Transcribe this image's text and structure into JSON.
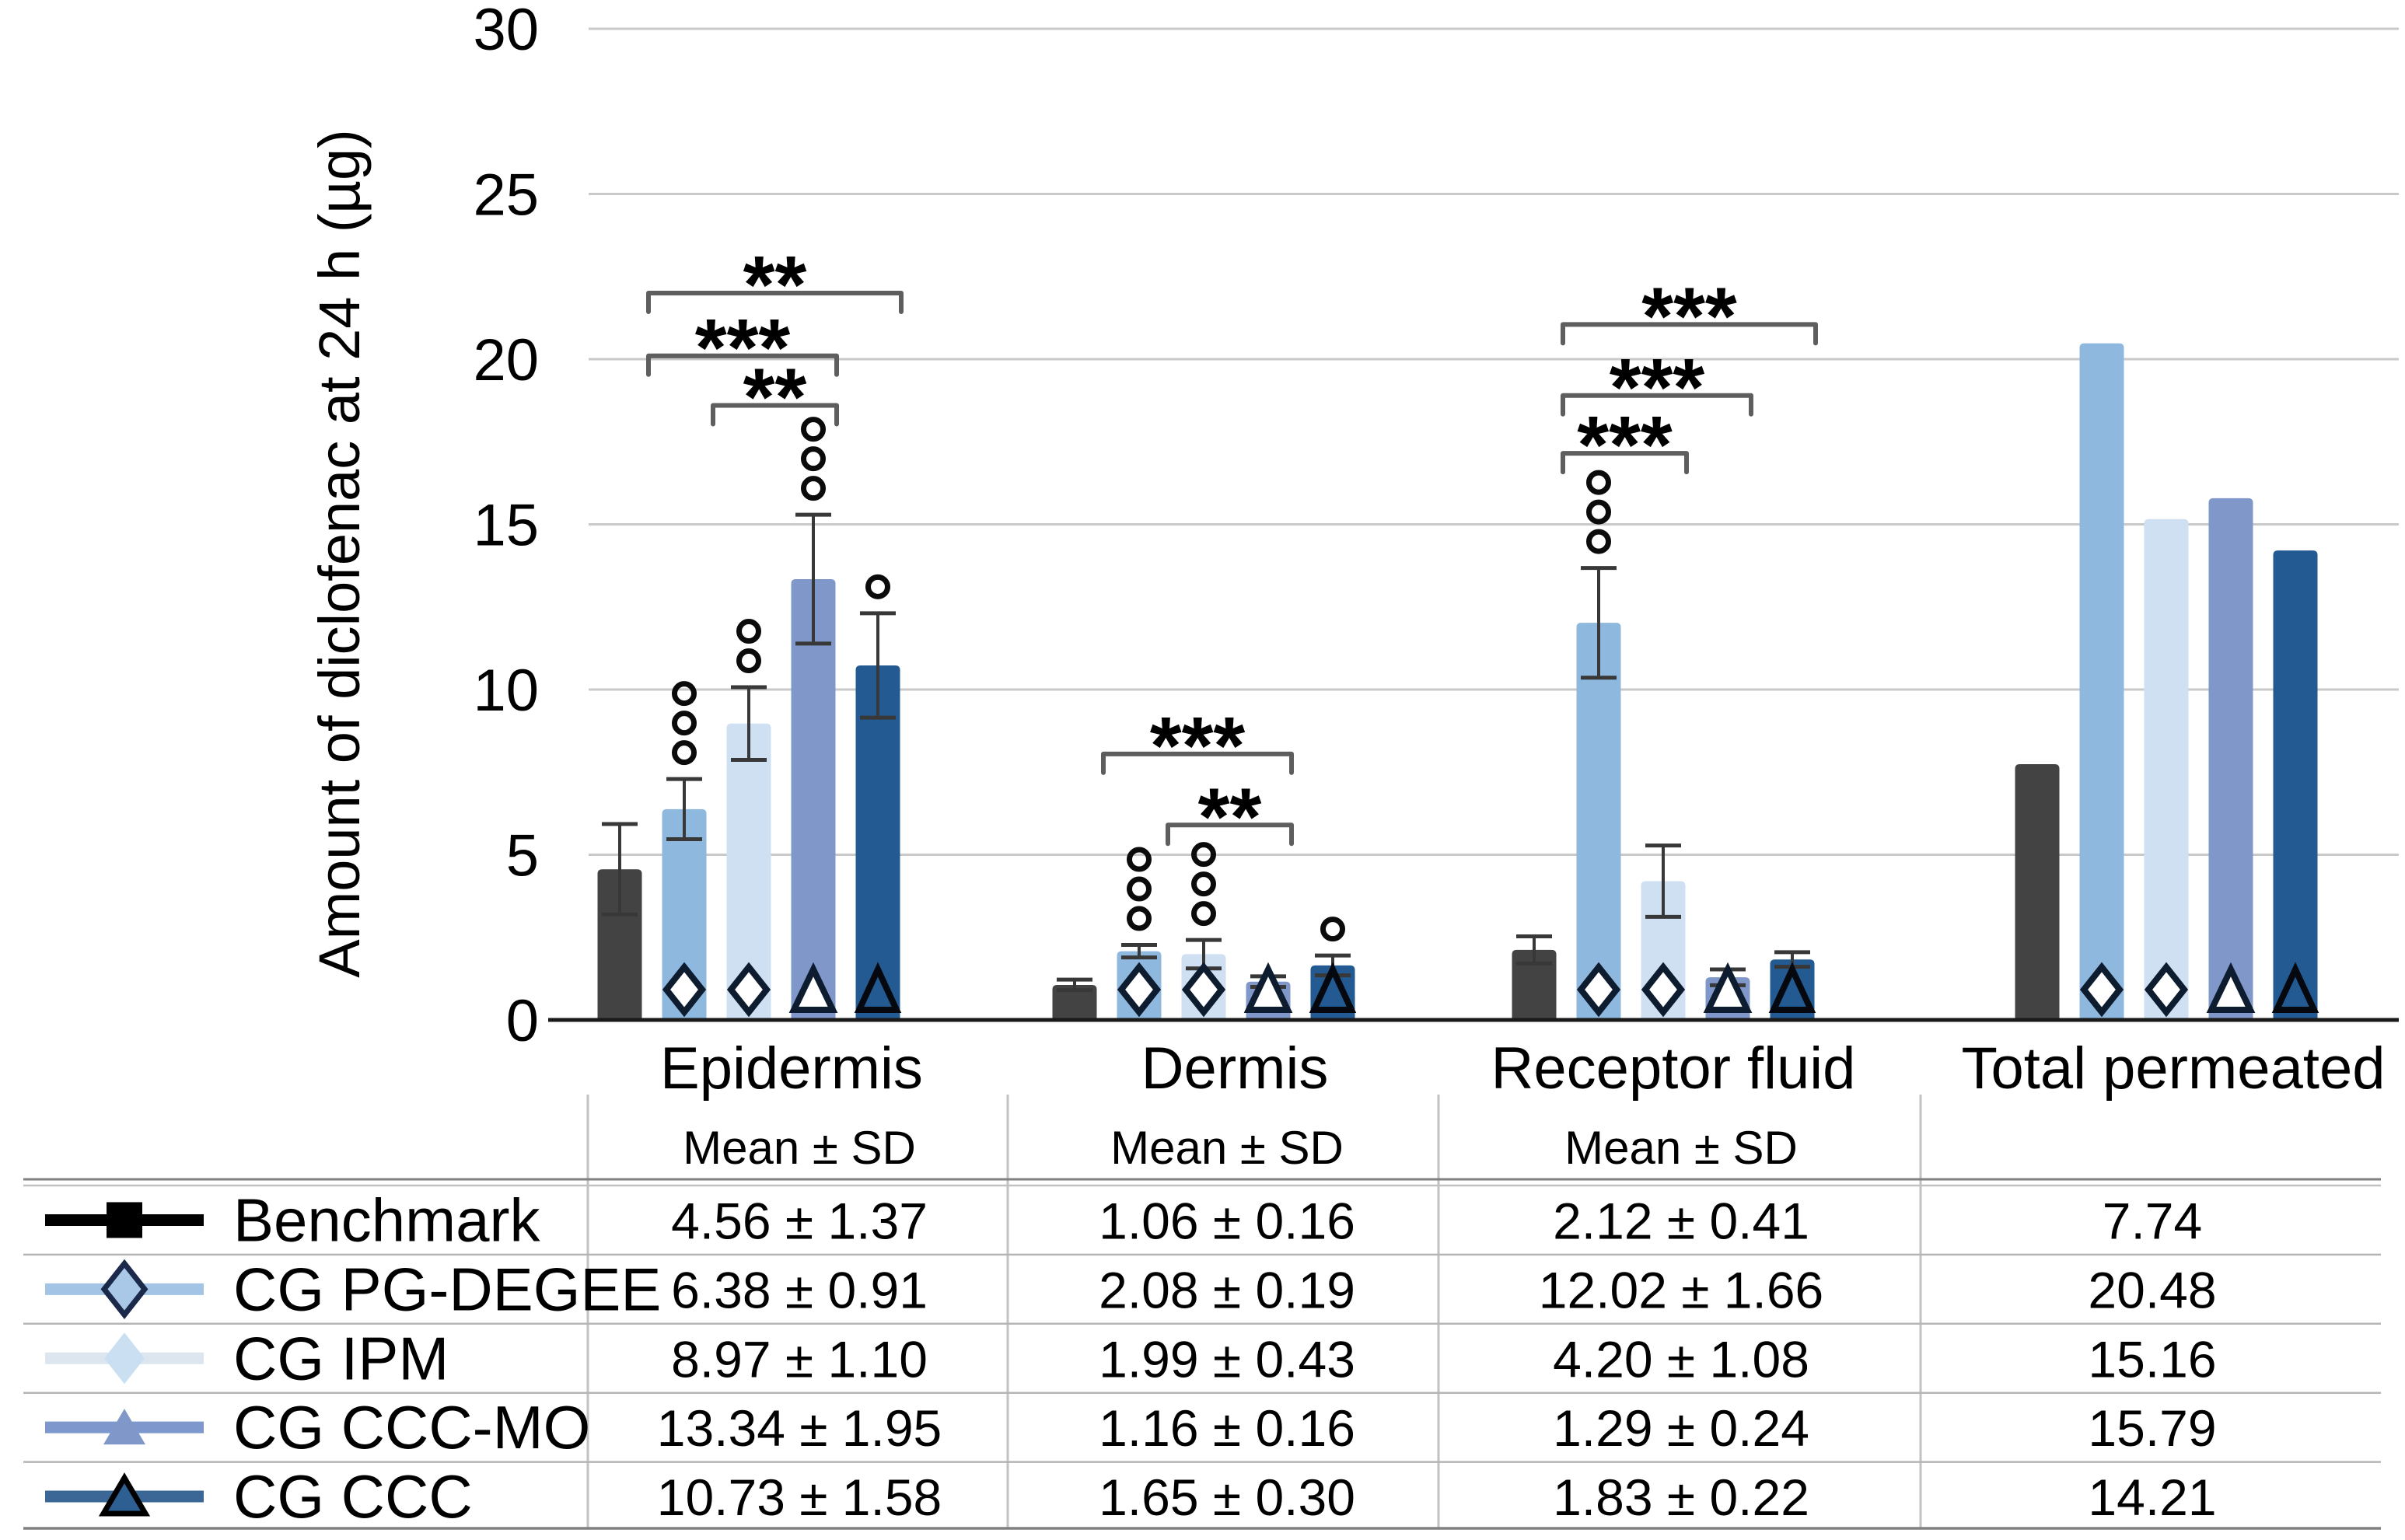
{
  "colors": {
    "background": "#ffffff",
    "benchmark": "#434343",
    "pg_degee": "#8fb8de",
    "ipm": "#cfe0f2",
    "ccc_mo": "#8097c9",
    "ccc": "#235a91",
    "gridline": "#c9c9c9",
    "axis_line": "#1a1a1a",
    "error_bar": "#383838",
    "significance": "#5e5e5e",
    "circle_marker": "#0b0b0b",
    "table_divider": "#c2c2c2",
    "table_row_line": "#b5b5b5",
    "table_header_line": "#808080"
  },
  "chart_data": {
    "type": "bar",
    "title": "",
    "ylabel": "Amount of diclofenac at 24 h (µg)",
    "ylim": [
      0,
      30
    ],
    "yticks": [
      0,
      5,
      10,
      15,
      20,
      25,
      30
    ],
    "grid": true,
    "legend_position": "table-left",
    "categories": [
      "Epidermis",
      "Dermis",
      "Receptor fluid",
      "Total permeated"
    ],
    "series": [
      {
        "name": "Benchmark",
        "values": [
          4.56,
          1.06,
          2.12,
          7.74
        ],
        "sd": [
          1.37,
          0.16,
          0.41,
          null
        ],
        "circles": [
          0,
          0,
          0,
          0
        ],
        "color": "#434343",
        "base_marker": "none",
        "legend": {
          "line": "#000000",
          "shape": "square",
          "fill": "#000000",
          "stroke": "none"
        }
      },
      {
        "name": "CG PG-DEGEE",
        "values": [
          6.38,
          2.08,
          12.02,
          20.48
        ],
        "sd": [
          0.91,
          0.19,
          1.66,
          null
        ],
        "circles": [
          3,
          3,
          3,
          0
        ],
        "color": "#8fb8de",
        "base_marker": "open-diamond",
        "legend": {
          "line": "#a3c4e5",
          "shape": "diamond",
          "fill": "#a9c8e8",
          "stroke": "#1b2a4a"
        }
      },
      {
        "name": "CG IPM",
        "values": [
          8.97,
          1.99,
          4.2,
          15.16
        ],
        "sd": [
          1.1,
          0.43,
          1.08,
          null
        ],
        "circles": [
          2,
          3,
          0,
          0
        ],
        "color": "#cfe0f2",
        "base_marker": "open-diamond",
        "legend": {
          "line": "#dde6ef",
          "shape": "diamond",
          "fill": "#cbdff2",
          "stroke": "none"
        }
      },
      {
        "name": "CG CCC-MO",
        "values": [
          13.34,
          1.16,
          1.29,
          15.79
        ],
        "sd": [
          1.95,
          0.16,
          0.24,
          null
        ],
        "circles": [
          3,
          0,
          0,
          0
        ],
        "color": "#8097c9",
        "base_marker": "open-triangle",
        "legend": {
          "line": "#7e97cc",
          "shape": "triangle",
          "fill": "#8097c9",
          "stroke": "none"
        }
      },
      {
        "name": "CG CCC",
        "values": [
          10.73,
          1.65,
          1.83,
          14.21
        ],
        "sd": [
          1.58,
          0.3,
          0.22,
          null
        ],
        "circles": [
          1,
          1,
          0,
          0
        ],
        "color": "#235a91",
        "base_marker": "outline-triangle",
        "legend": {
          "line": "#3a6795",
          "shape": "triangle",
          "fill": "#2e5f93",
          "stroke": "#000000"
        }
      }
    ],
    "significance": [
      {
        "category": 0,
        "from": 1,
        "to": 4,
        "label": "**",
        "y": 22.0
      },
      {
        "category": 0,
        "from": 1,
        "to": 3,
        "label": "***",
        "y": 20.1
      },
      {
        "category": 0,
        "from": 2,
        "to": 3,
        "label": "**",
        "y": 18.6
      },
      {
        "category": 1,
        "from": 1,
        "to": 3,
        "label": "***",
        "y": 8.05
      },
      {
        "category": 1,
        "from": 2,
        "to": 3,
        "label": "**",
        "y": 5.9
      },
      {
        "category": 2,
        "from": 1,
        "to": 4,
        "label": "***",
        "y": 21.05
      },
      {
        "category": 2,
        "from": 1,
        "to": 3,
        "label": "***",
        "y": 18.9
      },
      {
        "category": 2,
        "from": 1,
        "to": 2,
        "label": "***",
        "y": 17.15
      }
    ]
  },
  "table": {
    "columns": [
      "Epidermis",
      "Dermis",
      "Receptor fluid",
      "Total permeated"
    ],
    "subheader": "Mean ± SD",
    "subheader_columns": [
      true,
      true,
      true,
      false
    ],
    "rows": [
      {
        "label": "Benchmark",
        "values": [
          "4.56 ± 1.37",
          "1.06 ± 0.16",
          "2.12 ± 0.41",
          "7.74"
        ]
      },
      {
        "label": "CG PG-DEGEE",
        "values": [
          "6.38 ± 0.91",
          "2.08 ± 0.19",
          "12.02 ± 1.66",
          "20.48"
        ]
      },
      {
        "label": "CG IPM",
        "values": [
          "8.97 ± 1.10",
          "1.99 ± 0.43",
          "4.20 ± 1.08",
          "15.16"
        ]
      },
      {
        "label": "CG CCC-MO",
        "values": [
          "13.34 ± 1.95",
          "1.16 ± 0.16",
          "1.29 ± 0.24",
          "15.79"
        ]
      },
      {
        "label": "CG CCC",
        "values": [
          "10.73 ± 1.58",
          "1.65 ± 0.30",
          "1.83 ± 0.22",
          "14.21"
        ]
      }
    ]
  }
}
